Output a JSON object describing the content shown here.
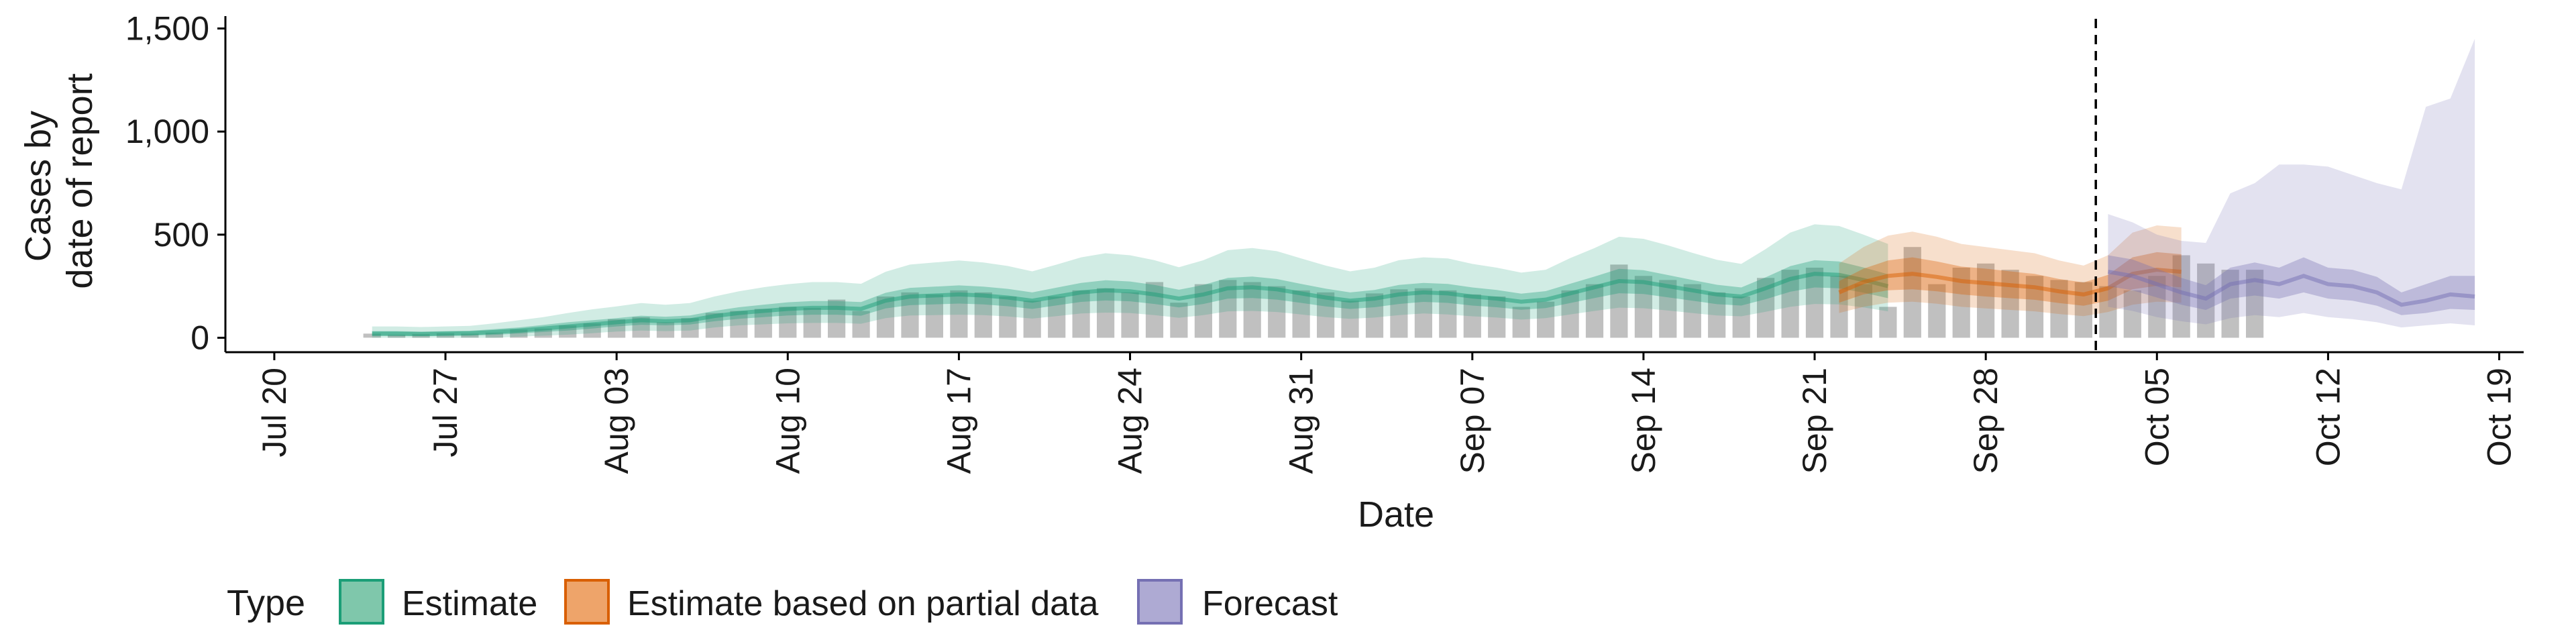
{
  "chart_data": {
    "type": "area",
    "xlabel": "Date",
    "ylabel_lines": [
      "Cases by",
      "date of report"
    ],
    "xlim": [
      "2020-07-18",
      "2020-10-20"
    ],
    "ylim": [
      -70,
      1560
    ],
    "x_ticks": [
      "2020-07-20",
      "2020-07-27",
      "2020-08-03",
      "2020-08-10",
      "2020-08-17",
      "2020-08-24",
      "2020-08-31",
      "2020-09-07",
      "2020-09-14",
      "2020-09-21",
      "2020-09-28",
      "2020-10-05",
      "2020-10-12",
      "2020-10-19"
    ],
    "x_tick_labels": [
      "Jul 20",
      "Jul 27",
      "Aug 03",
      "Aug 10",
      "Aug 17",
      "Aug 24",
      "Aug 31",
      "Sep 07",
      "Sep 14",
      "Sep 21",
      "Sep 28",
      "Oct 05",
      "Oct 12",
      "Oct 19"
    ],
    "y_ticks": [
      0,
      500,
      1000,
      1500
    ],
    "y_tick_labels": [
      "0",
      "500",
      "1,000",
      "1,500"
    ],
    "forecast_date": "2020-10-02",
    "legend": {
      "title": "Type",
      "position": "bottom",
      "items": [
        {
          "label": "Estimate",
          "fill": "#7fc7ab",
          "stroke": "#1b9e77"
        },
        {
          "label": "Estimate based on partial data",
          "fill": "#eea46a",
          "stroke": "#d95f02"
        },
        {
          "label": "Forecast",
          "fill": "#aeaad3",
          "stroke": "#7570b3"
        }
      ]
    },
    "colors": {
      "estimate": "#1b9e77",
      "partial": "#d95f02",
      "forecast": "#7570b3",
      "bars": "#bdbdbd"
    },
    "observed": {
      "start": "2020-07-24",
      "values": [
        20,
        15,
        18,
        22,
        20,
        25,
        40,
        45,
        60,
        70,
        90,
        100,
        75,
        95,
        120,
        130,
        140,
        150,
        145,
        185,
        130,
        200,
        220,
        210,
        230,
        220,
        200,
        180,
        200,
        230,
        240,
        220,
        270,
        170,
        260,
        280,
        270,
        250,
        230,
        220,
        180,
        215,
        235,
        240,
        230,
        210,
        200,
        150,
        175,
        230,
        260,
        355,
        300,
        280,
        260,
        220,
        200,
        290,
        330,
        340,
        300,
        260,
        150,
        440,
        260,
        340,
        360,
        330,
        300,
        280,
        270,
        250,
        230,
        300,
        400,
        360,
        330,
        330
      ]
    },
    "series": [
      {
        "name": "Estimate",
        "key": "estimate",
        "start": "2020-07-24",
        "median": [
          20,
          20,
          18,
          20,
          22,
          28,
          35,
          45,
          55,
          65,
          75,
          85,
          80,
          85,
          105,
          120,
          130,
          140,
          145,
          145,
          140,
          180,
          200,
          205,
          210,
          205,
          195,
          180,
          200,
          220,
          230,
          225,
          210,
          190,
          210,
          240,
          245,
          235,
          215,
          195,
          180,
          190,
          210,
          220,
          215,
          200,
          190,
          175,
          185,
          215,
          245,
          275,
          270,
          250,
          230,
          210,
          200,
          240,
          285,
          310,
          305,
          280,
          250
        ],
        "inner": [
          [
            8,
            32
          ],
          [
            8,
            32
          ],
          [
            8,
            30
          ],
          [
            9,
            32
          ],
          [
            10,
            34
          ],
          [
            14,
            42
          ],
          [
            20,
            50
          ],
          [
            28,
            62
          ],
          [
            35,
            75
          ],
          [
            45,
            85
          ],
          [
            55,
            95
          ],
          [
            63,
            107
          ],
          [
            60,
            102
          ],
          [
            64,
            108
          ],
          [
            80,
            130
          ],
          [
            92,
            148
          ],
          [
            100,
            160
          ],
          [
            108,
            172
          ],
          [
            112,
            178
          ],
          [
            112,
            178
          ],
          [
            107,
            173
          ],
          [
            142,
            218
          ],
          [
            158,
            242
          ],
          [
            162,
            248
          ],
          [
            166,
            254
          ],
          [
            162,
            248
          ],
          [
            153,
            237
          ],
          [
            140,
            220
          ],
          [
            157,
            243
          ],
          [
            174,
            266
          ],
          [
            181,
            279
          ],
          [
            177,
            273
          ],
          [
            164,
            256
          ],
          [
            147,
            233
          ],
          [
            164,
            256
          ],
          [
            190,
            290
          ],
          [
            193,
            297
          ],
          [
            185,
            285
          ],
          [
            169,
            261
          ],
          [
            152,
            238
          ],
          [
            140,
            220
          ],
          [
            148,
            232
          ],
          [
            164,
            256
          ],
          [
            174,
            266
          ],
          [
            169,
            261
          ],
          [
            156,
            244
          ],
          [
            148,
            232
          ],
          [
            136,
            214
          ],
          [
            144,
            226
          ],
          [
            168,
            262
          ],
          [
            193,
            297
          ],
          [
            216,
            334
          ],
          [
            212,
            328
          ],
          [
            196,
            304
          ],
          [
            180,
            280
          ],
          [
            163,
            257
          ],
          [
            156,
            244
          ],
          [
            187,
            293
          ],
          [
            223,
            347
          ],
          [
            244,
            376
          ],
          [
            240,
            370
          ],
          [
            219,
            341
          ],
          [
            192,
            308
          ]
        ],
        "outer": [
          [
            0,
            55
          ],
          [
            0,
            55
          ],
          [
            0,
            52
          ],
          [
            0,
            55
          ],
          [
            0,
            58
          ],
          [
            0,
            70
          ],
          [
            5,
            85
          ],
          [
            10,
            100
          ],
          [
            15,
            120
          ],
          [
            22,
            138
          ],
          [
            30,
            152
          ],
          [
            35,
            168
          ],
          [
            32,
            160
          ],
          [
            35,
            168
          ],
          [
            50,
            200
          ],
          [
            60,
            225
          ],
          [
            65,
            245
          ],
          [
            70,
            260
          ],
          [
            72,
            270
          ],
          [
            72,
            270
          ],
          [
            68,
            262
          ],
          [
            95,
            320
          ],
          [
            108,
            355
          ],
          [
            110,
            365
          ],
          [
            112,
            375
          ],
          [
            110,
            365
          ],
          [
            103,
            348
          ],
          [
            93,
            322
          ],
          [
            105,
            355
          ],
          [
            118,
            390
          ],
          [
            122,
            410
          ],
          [
            120,
            400
          ],
          [
            110,
            376
          ],
          [
            97,
            342
          ],
          [
            110,
            376
          ],
          [
            128,
            425
          ],
          [
            130,
            435
          ],
          [
            125,
            420
          ],
          [
            113,
            385
          ],
          [
            100,
            350
          ],
          [
            92,
            322
          ],
          [
            98,
            340
          ],
          [
            110,
            376
          ],
          [
            118,
            390
          ],
          [
            113,
            385
          ],
          [
            104,
            358
          ],
          [
            98,
            340
          ],
          [
            88,
            316
          ],
          [
            95,
            330
          ],
          [
            113,
            386
          ],
          [
            130,
            435
          ],
          [
            146,
            490
          ],
          [
            143,
            480
          ],
          [
            132,
            448
          ],
          [
            120,
            412
          ],
          [
            108,
            378
          ],
          [
            104,
            358
          ],
          [
            126,
            430
          ],
          [
            150,
            510
          ],
          [
            164,
            550
          ],
          [
            162,
            542
          ],
          [
            147,
            500
          ],
          [
            128,
            455
          ]
        ]
      },
      {
        "name": "Estimate based on partial data",
        "key": "partial",
        "start": "2020-09-22",
        "median": [
          220,
          270,
          300,
          310,
          295,
          275,
          265,
          255,
          245,
          225,
          210,
          240,
          310,
          330,
          320
        ],
        "inner": [
          [
            170,
            275
          ],
          [
            210,
            335
          ],
          [
            230,
            375
          ],
          [
            235,
            390
          ],
          [
            225,
            370
          ],
          [
            210,
            345
          ],
          [
            200,
            335
          ],
          [
            192,
            322
          ],
          [
            184,
            310
          ],
          [
            168,
            285
          ],
          [
            155,
            268
          ],
          [
            180,
            305
          ],
          [
            235,
            390
          ],
          [
            252,
            415
          ],
          [
            245,
            405
          ]
        ],
        "outer": [
          [
            120,
            360
          ],
          [
            150,
            440
          ],
          [
            170,
            495
          ],
          [
            175,
            515
          ],
          [
            165,
            490
          ],
          [
            150,
            455
          ],
          [
            142,
            440
          ],
          [
            135,
            425
          ],
          [
            128,
            410
          ],
          [
            115,
            375
          ],
          [
            105,
            350
          ],
          [
            125,
            400
          ],
          [
            160,
            510
          ],
          [
            175,
            545
          ],
          [
            170,
            535
          ]
        ]
      },
      {
        "name": "Forecast",
        "key": "forecast",
        "start": "2020-10-03",
        "median": [
          320,
          300,
          260,
          220,
          190,
          260,
          280,
          260,
          300,
          260,
          250,
          220,
          160,
          180,
          210,
          200
        ],
        "inner": [
          [
            250,
            400
          ],
          [
            230,
            380
          ],
          [
            195,
            335
          ],
          [
            160,
            290
          ],
          [
            135,
            255
          ],
          [
            190,
            340
          ],
          [
            205,
            365
          ],
          [
            190,
            340
          ],
          [
            220,
            390
          ],
          [
            190,
            340
          ],
          [
            180,
            330
          ],
          [
            155,
            295
          ],
          [
            110,
            220
          ],
          [
            120,
            260
          ],
          [
            140,
            300
          ],
          [
            135,
            300
          ]
        ],
        "outer": [
          [
            150,
            600
          ],
          [
            130,
            560
          ],
          [
            100,
            500
          ],
          [
            80,
            470
          ],
          [
            65,
            460
          ],
          [
            95,
            700
          ],
          [
            110,
            750
          ],
          [
            100,
            840
          ],
          [
            120,
            840
          ],
          [
            100,
            830
          ],
          [
            90,
            790
          ],
          [
            75,
            750
          ],
          [
            50,
            720
          ],
          [
            60,
            1120
          ],
          [
            70,
            1160
          ],
          [
            60,
            1450
          ]
        ]
      }
    ]
  }
}
